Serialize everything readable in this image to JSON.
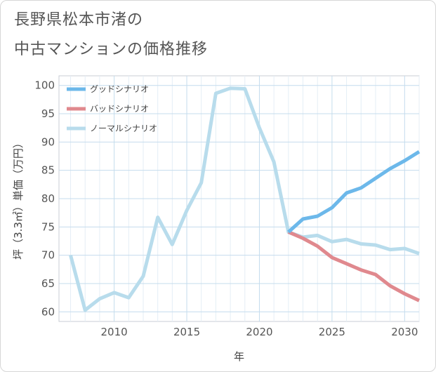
{
  "title_line1": "長野県松本市渚の",
  "title_line2": "中古マンションの価格推移",
  "chart_data": {
    "type": "line",
    "xlabel": "年",
    "ylabel": "坪（3.3㎡）単価（万円）",
    "xlim": [
      2006.2,
      2031
    ],
    "ylim": [
      58.3,
      101.7
    ],
    "x_ticks": [
      2010,
      2015,
      2020,
      2025,
      2030
    ],
    "y_ticks": [
      60,
      65,
      70,
      75,
      80,
      85,
      90,
      95,
      100
    ],
    "grid": true,
    "legend_position": "top-left",
    "series": [
      {
        "name": "グッドシナリオ",
        "color": "#6cb8ea",
        "x": [
          2022,
          2023,
          2024,
          2025,
          2026,
          2027,
          2028,
          2029,
          2030,
          2031
        ],
        "y": [
          74.1,
          76.4,
          76.9,
          78.4,
          81.0,
          81.9,
          83.6,
          85.3,
          86.7,
          88.3
        ]
      },
      {
        "name": "バッドシナリオ",
        "color": "#e0898e",
        "x": [
          2022,
          2023,
          2024,
          2025,
          2026,
          2027,
          2028,
          2029,
          2030,
          2031
        ],
        "y": [
          74.1,
          73.0,
          71.6,
          69.6,
          68.5,
          67.4,
          66.6,
          64.6,
          63.2,
          62.0
        ]
      },
      {
        "name": "ノーマルシナリオ",
        "color": "#b8dcec",
        "x": [
          2007,
          2008,
          2009,
          2010,
          2011,
          2012,
          2013,
          2014,
          2015,
          2016,
          2017,
          2018,
          2019,
          2020,
          2021,
          2022,
          2023,
          2024,
          2025,
          2026,
          2027,
          2028,
          2029,
          2030,
          2031
        ],
        "y": [
          70.0,
          60.3,
          62.3,
          63.4,
          62.5,
          66.3,
          76.7,
          71.9,
          77.9,
          82.8,
          98.6,
          99.5,
          99.4,
          92.5,
          86.5,
          74.1,
          73.2,
          73.5,
          72.4,
          72.8,
          72.0,
          71.8,
          71.0,
          71.2,
          70.3
        ]
      }
    ]
  }
}
